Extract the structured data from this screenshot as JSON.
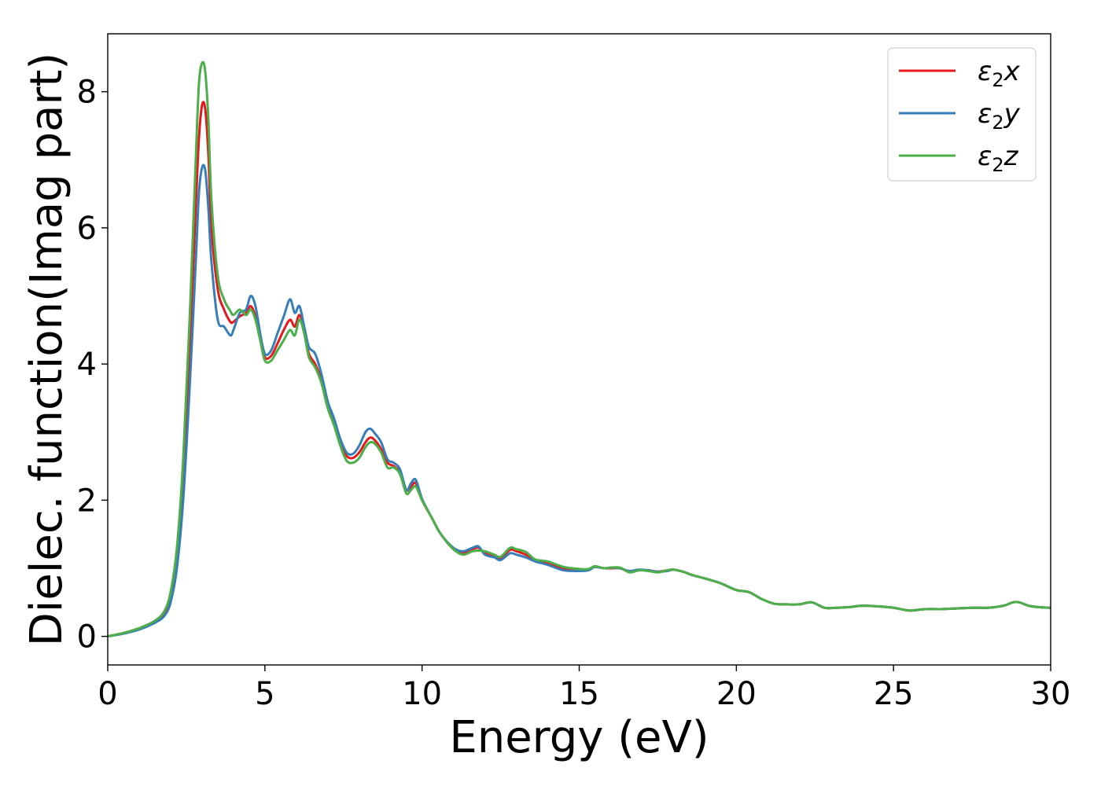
{
  "chart_data": {
    "type": "line",
    "xlabel": "Energy (eV)",
    "ylabel": "Dielec. function(Imag part)",
    "xlim": [
      0,
      30
    ],
    "ylim": [
      -0.42,
      8.85
    ],
    "xticks": [
      0,
      5,
      10,
      15,
      20,
      25,
      30
    ],
    "yticks": [
      0,
      2,
      4,
      6,
      8
    ],
    "grid": false,
    "legend_position": "top-right",
    "series": [
      {
        "name": "ε₂x",
        "legend_base": "ε",
        "legend_sub": "2",
        "legend_suffix": "x",
        "color": "#e41a1c",
        "x": [
          0,
          0.5,
          1.0,
          1.5,
          1.8,
          2.0,
          2.2,
          2.4,
          2.6,
          2.8,
          2.9,
          3.0,
          3.1,
          3.2,
          3.3,
          3.5,
          3.7,
          3.9,
          4.0,
          4.2,
          4.4,
          4.55,
          4.7,
          4.85,
          5.0,
          5.2,
          5.4,
          5.6,
          5.8,
          5.95,
          6.1,
          6.25,
          6.4,
          6.6,
          6.8,
          7.0,
          7.2,
          7.4,
          7.6,
          7.8,
          8.0,
          8.2,
          8.35,
          8.5,
          8.7,
          8.9,
          9.1,
          9.3,
          9.5,
          9.65,
          9.8,
          10.0,
          10.3,
          10.6,
          11.0,
          11.3,
          11.6,
          11.8,
          12.0,
          12.3,
          12.5,
          12.8,
          13.0,
          13.3,
          13.6,
          14.0,
          14.5,
          15.0,
          15.3,
          15.5,
          15.8,
          16.0,
          16.3,
          16.6,
          16.9,
          17.2,
          17.5,
          17.8,
          18.0,
          18.3,
          18.6,
          19.0,
          19.5,
          20.0,
          20.4,
          20.8,
          21.2,
          21.6,
          22.0,
          22.4,
          22.8,
          23.2,
          23.6,
          24.0,
          24.5,
          25.0,
          25.5,
          26.0,
          26.5,
          27.0,
          27.5,
          28.0,
          28.5,
          28.8,
          29.0,
          29.3,
          29.6,
          30.0
        ],
        "y": [
          0,
          0.05,
          0.12,
          0.22,
          0.35,
          0.6,
          1.2,
          2.4,
          4.2,
          6.3,
          7.3,
          7.8,
          7.75,
          7.1,
          6.0,
          5.1,
          4.8,
          4.62,
          4.62,
          4.7,
          4.75,
          4.85,
          4.7,
          4.4,
          4.1,
          4.12,
          4.3,
          4.5,
          4.65,
          4.55,
          4.72,
          4.5,
          4.15,
          4.0,
          3.75,
          3.4,
          3.15,
          2.85,
          2.65,
          2.62,
          2.7,
          2.85,
          2.92,
          2.88,
          2.75,
          2.55,
          2.5,
          2.4,
          2.15,
          2.2,
          2.25,
          2.0,
          1.75,
          1.5,
          1.28,
          1.22,
          1.28,
          1.3,
          1.22,
          1.18,
          1.15,
          1.27,
          1.25,
          1.2,
          1.12,
          1.08,
          1.0,
          0.98,
          0.98,
          1.02,
          1.0,
          1.0,
          1.0,
          0.95,
          0.97,
          0.97,
          0.95,
          0.97,
          0.98,
          0.95,
          0.9,
          0.85,
          0.78,
          0.68,
          0.65,
          0.55,
          0.48,
          0.47,
          0.47,
          0.5,
          0.42,
          0.42,
          0.43,
          0.45,
          0.44,
          0.42,
          0.38,
          0.4,
          0.4,
          0.41,
          0.42,
          0.42,
          0.45,
          0.5,
          0.5,
          0.45,
          0.43,
          0.42
        ]
      },
      {
        "name": "ε₂y",
        "legend_base": "ε",
        "legend_sub": "2",
        "legend_suffix": "y",
        "color": "#377eb8",
        "x": [
          0,
          0.5,
          1.0,
          1.5,
          1.8,
          2.0,
          2.2,
          2.4,
          2.6,
          2.8,
          2.9,
          3.0,
          3.1,
          3.2,
          3.3,
          3.5,
          3.7,
          3.9,
          4.0,
          4.2,
          4.4,
          4.55,
          4.7,
          4.85,
          5.0,
          5.2,
          5.4,
          5.6,
          5.8,
          5.95,
          6.1,
          6.25,
          6.4,
          6.6,
          6.8,
          7.0,
          7.2,
          7.4,
          7.6,
          7.8,
          8.0,
          8.2,
          8.35,
          8.5,
          8.7,
          8.9,
          9.1,
          9.3,
          9.5,
          9.65,
          9.8,
          10.0,
          10.3,
          10.6,
          11.0,
          11.3,
          11.6,
          11.8,
          12.0,
          12.3,
          12.5,
          12.8,
          13.0,
          13.3,
          13.6,
          14.0,
          14.5,
          15.0,
          15.3,
          15.5,
          15.8,
          16.0,
          16.3,
          16.6,
          16.9,
          17.2,
          17.5,
          17.8,
          18.0,
          18.3,
          18.6,
          19.0,
          19.5,
          20.0,
          20.4,
          20.8,
          21.2,
          21.6,
          22.0,
          22.4,
          22.8,
          23.2,
          23.6,
          24.0,
          24.5,
          25.0,
          25.5,
          26.0,
          26.5,
          27.0,
          27.5,
          28.0,
          28.5,
          28.8,
          29.0,
          29.3,
          29.6,
          30.0
        ],
        "y": [
          0,
          0.04,
          0.1,
          0.2,
          0.3,
          0.5,
          1.0,
          2.0,
          3.6,
          5.5,
          6.5,
          6.88,
          6.85,
          6.3,
          5.5,
          4.65,
          4.55,
          4.42,
          4.5,
          4.75,
          4.8,
          5.0,
          4.85,
          4.45,
          4.15,
          4.2,
          4.45,
          4.7,
          4.95,
          4.75,
          4.85,
          4.55,
          4.25,
          4.15,
          3.85,
          3.45,
          3.2,
          2.9,
          2.7,
          2.68,
          2.8,
          3.0,
          3.05,
          2.98,
          2.85,
          2.6,
          2.55,
          2.45,
          2.15,
          2.25,
          2.3,
          2.02,
          1.75,
          1.5,
          1.3,
          1.25,
          1.3,
          1.32,
          1.2,
          1.16,
          1.12,
          1.22,
          1.2,
          1.16,
          1.1,
          1.05,
          0.97,
          0.96,
          0.97,
          1.02,
          1.0,
          1.01,
          1.0,
          0.96,
          0.98,
          0.97,
          0.95,
          0.96,
          0.98,
          0.95,
          0.9,
          0.85,
          0.78,
          0.68,
          0.65,
          0.55,
          0.48,
          0.47,
          0.47,
          0.5,
          0.42,
          0.42,
          0.43,
          0.45,
          0.44,
          0.42,
          0.38,
          0.4,
          0.4,
          0.41,
          0.42,
          0.42,
          0.45,
          0.5,
          0.5,
          0.45,
          0.43,
          0.42
        ]
      },
      {
        "name": "ε₂z",
        "legend_base": "ε",
        "legend_sub": "2",
        "legend_suffix": "z",
        "color": "#4daf4a",
        "x": [
          0,
          0.5,
          1.0,
          1.5,
          1.8,
          2.0,
          2.2,
          2.4,
          2.6,
          2.8,
          2.9,
          3.0,
          3.1,
          3.2,
          3.3,
          3.5,
          3.7,
          3.9,
          4.0,
          4.2,
          4.4,
          4.55,
          4.7,
          4.85,
          5.0,
          5.2,
          5.4,
          5.6,
          5.8,
          5.95,
          6.1,
          6.25,
          6.4,
          6.6,
          6.8,
          7.0,
          7.2,
          7.4,
          7.6,
          7.8,
          8.0,
          8.2,
          8.35,
          8.5,
          8.7,
          8.9,
          9.1,
          9.3,
          9.5,
          9.65,
          9.8,
          10.0,
          10.3,
          10.6,
          11.0,
          11.3,
          11.6,
          11.8,
          12.0,
          12.3,
          12.5,
          12.8,
          13.0,
          13.3,
          13.6,
          14.0,
          14.5,
          15.0,
          15.3,
          15.5,
          15.8,
          16.0,
          16.3,
          16.6,
          16.9,
          17.2,
          17.5,
          17.8,
          18.0,
          18.3,
          18.6,
          19.0,
          19.5,
          20.0,
          20.4,
          20.8,
          21.2,
          21.6,
          22.0,
          22.4,
          22.8,
          23.2,
          23.6,
          24.0,
          24.5,
          25.0,
          25.5,
          26.0,
          26.5,
          27.0,
          27.5,
          28.0,
          28.5,
          28.8,
          29.0,
          29.3,
          29.6,
          30.0
        ],
        "y": [
          0,
          0.05,
          0.12,
          0.23,
          0.37,
          0.65,
          1.3,
          2.6,
          4.6,
          7.0,
          8.1,
          8.42,
          8.3,
          7.6,
          6.4,
          5.3,
          4.95,
          4.78,
          4.72,
          4.8,
          4.72,
          4.8,
          4.65,
          4.35,
          4.05,
          4.05,
          4.2,
          4.35,
          4.5,
          4.42,
          4.65,
          4.45,
          4.1,
          3.95,
          3.72,
          3.35,
          3.1,
          2.8,
          2.58,
          2.55,
          2.62,
          2.78,
          2.85,
          2.83,
          2.7,
          2.48,
          2.48,
          2.38,
          2.1,
          2.15,
          2.2,
          2.0,
          1.75,
          1.5,
          1.28,
          1.2,
          1.25,
          1.26,
          1.25,
          1.2,
          1.17,
          1.3,
          1.28,
          1.24,
          1.13,
          1.1,
          1.02,
          0.99,
          0.99,
          1.03,
          1.0,
          1.01,
          1.01,
          0.94,
          0.97,
          0.96,
          0.94,
          0.97,
          0.98,
          0.95,
          0.9,
          0.85,
          0.78,
          0.68,
          0.65,
          0.55,
          0.48,
          0.47,
          0.47,
          0.5,
          0.42,
          0.42,
          0.43,
          0.45,
          0.44,
          0.42,
          0.38,
          0.4,
          0.4,
          0.41,
          0.42,
          0.42,
          0.45,
          0.5,
          0.5,
          0.45,
          0.43,
          0.42
        ]
      }
    ]
  }
}
